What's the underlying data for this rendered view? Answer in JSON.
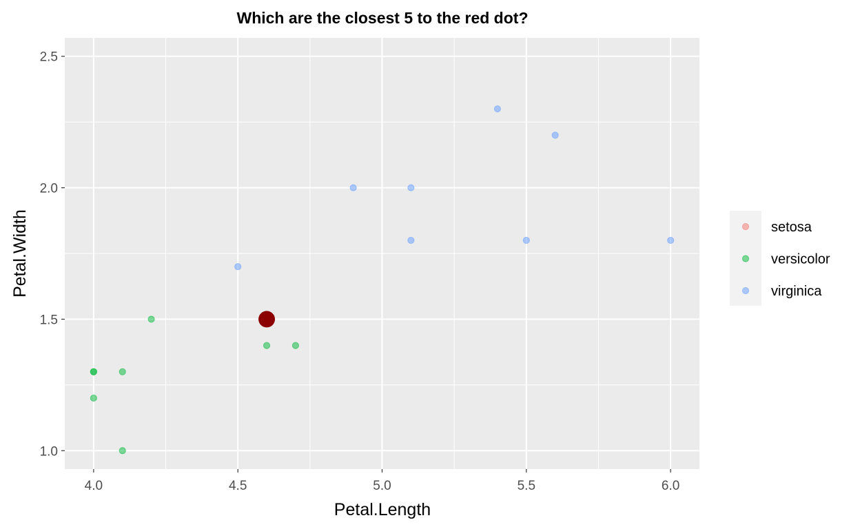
{
  "chart_data": {
    "type": "scatter",
    "title": "Which are the closest 5 to the red dot?",
    "xlabel": "Petal.Length",
    "ylabel": "Petal.Width",
    "xlim": [
      3.9,
      6.1
    ],
    "ylim": [
      0.93,
      2.57
    ],
    "x_ticks": [
      4.0,
      4.5,
      5.0,
      5.5,
      6.0
    ],
    "x_tick_labels": [
      "4.0",
      "4.5",
      "5.0",
      "5.5",
      "6.0"
    ],
    "y_ticks": [
      1.0,
      1.5,
      2.0,
      2.5
    ],
    "y_tick_labels": [
      "1.0",
      "1.5",
      "2.0",
      "2.5"
    ],
    "grid": true,
    "legend_position": "right",
    "series": [
      {
        "name": "setosa",
        "color": "#F8766D",
        "points": []
      },
      {
        "name": "versicolor",
        "color": "#00BA38",
        "points": [
          [
            4.0,
            1.3
          ],
          [
            4.0,
            1.3
          ],
          [
            4.0,
            1.2
          ],
          [
            4.1,
            1.3
          ],
          [
            4.1,
            1.0
          ],
          [
            4.2,
            1.5
          ],
          [
            4.6,
            1.4
          ],
          [
            4.7,
            1.4
          ]
        ]
      },
      {
        "name": "virginica",
        "color": "#619CFF",
        "points": [
          [
            4.5,
            1.7
          ],
          [
            4.9,
            2.0
          ],
          [
            5.1,
            2.0
          ],
          [
            5.1,
            1.8
          ],
          [
            5.4,
            2.3
          ],
          [
            5.5,
            1.8
          ],
          [
            5.6,
            2.2
          ],
          [
            6.0,
            1.8
          ]
        ]
      }
    ],
    "highlight_point": {
      "x": 4.6,
      "y": 1.5,
      "color": "#8B0000"
    }
  }
}
